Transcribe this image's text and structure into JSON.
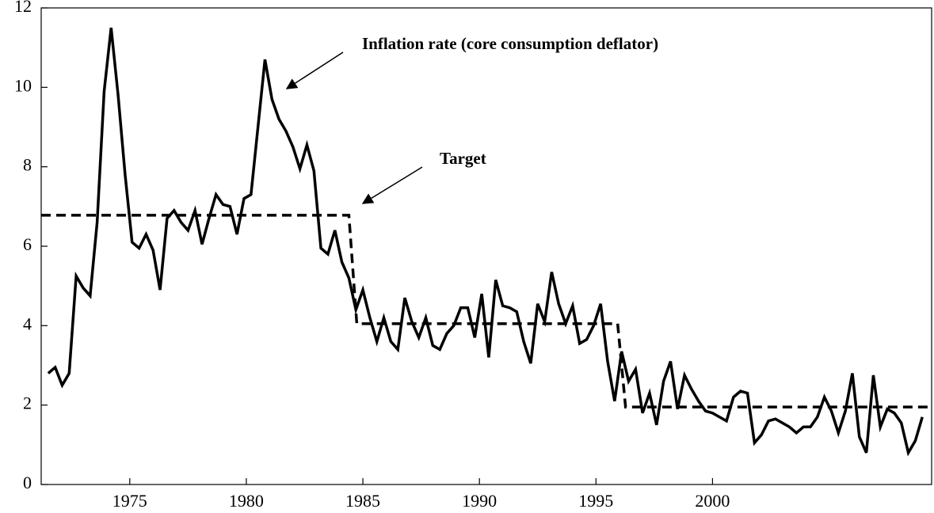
{
  "chart_data": {
    "type": "line",
    "annotations": [
      {
        "text": "Inflation rate (core consumption deflator)"
      },
      {
        "text": "Target"
      }
    ],
    "xlim": [
      1971.2,
      2009.4
    ],
    "xticks": [
      1975,
      1980,
      1985,
      1990,
      1995,
      2000
    ],
    "ylim": [
      0,
      12
    ],
    "yticks": [
      0,
      2,
      4,
      6,
      8,
      10,
      12
    ],
    "series": [
      {
        "name": "Inflation rate (core consumption deflator)",
        "color": "#000000",
        "style": "solid",
        "x": [
          1971.5,
          1971.8,
          1972.1,
          1972.4,
          1972.7,
          1973,
          1973.3,
          1973.6,
          1973.9,
          1974.2,
          1974.5,
          1974.8,
          1975.1,
          1975.4,
          1975.7,
          1976,
          1976.3,
          1976.6,
          1976.9,
          1977.2,
          1977.5,
          1977.8,
          1978.1,
          1978.4,
          1978.7,
          1979,
          1979.3,
          1979.6,
          1979.9,
          1980.2,
          1980.5,
          1980.8,
          1981.1,
          1981.4,
          1981.7,
          1982,
          1982.3,
          1982.6,
          1982.9,
          1983.2,
          1983.5,
          1983.8,
          1984.1,
          1984.4,
          1984.7,
          1985,
          1985.3,
          1985.6,
          1985.9,
          1986.2,
          1986.5,
          1986.8,
          1987.1,
          1987.4,
          1987.7,
          1988,
          1988.3,
          1988.6,
          1988.9,
          1989.2,
          1989.5,
          1989.8,
          1990.1,
          1990.4,
          1990.7,
          1991,
          1991.3,
          1991.6,
          1991.9,
          1992.2,
          1992.5,
          1992.8,
          1993.1,
          1993.4,
          1993.7,
          1994,
          1994.3,
          1994.6,
          1994.9,
          1995.2,
          1995.5,
          1995.8,
          1996.1,
          1996.4,
          1996.7,
          1997,
          1997.3,
          1997.6,
          1997.9,
          1998.2,
          1998.5,
          1998.8,
          1999.1,
          1999.4,
          1999.7,
          2000,
          2000.3,
          2000.6,
          2000.9,
          2001.2,
          2001.5,
          2001.8,
          2002.1,
          2002.4,
          2002.7,
          2003,
          2003.3,
          2003.6,
          2003.9,
          2004.2,
          2004.5,
          2004.8,
          2005.1,
          2005.4,
          2005.7,
          2006,
          2006.3,
          2006.6,
          2006.9,
          2007.2,
          2007.5,
          2007.8,
          2008.1,
          2008.4,
          2008.7,
          2009
        ],
        "values": [
          2.8,
          2.95,
          2.5,
          2.8,
          5.25,
          4.95,
          4.75,
          6.6,
          9.9,
          11.5,
          9.8,
          7.8,
          6.1,
          5.95,
          6.3,
          5.9,
          4.9,
          6.7,
          6.9,
          6.6,
          6.4,
          6.9,
          6.05,
          6.7,
          7.3,
          7.05,
          7.0,
          6.3,
          7.2,
          7.3,
          9.0,
          10.7,
          9.7,
          9.2,
          8.9,
          8.5,
          7.95,
          8.55,
          7.9,
          5.95,
          5.8,
          6.4,
          5.6,
          5.2,
          4.4,
          4.9,
          4.2,
          3.6,
          4.2,
          3.6,
          3.4,
          4.7,
          4.1,
          3.7,
          4.2,
          3.5,
          3.4,
          3.8,
          4.0,
          4.45,
          4.45,
          3.7,
          4.8,
          3.2,
          5.15,
          4.5,
          4.45,
          4.35,
          3.6,
          3.05,
          4.55,
          4.1,
          5.35,
          4.55,
          4.05,
          4.5,
          3.55,
          3.65,
          4.0,
          4.55,
          3.1,
          2.1,
          3.35,
          2.6,
          2.9,
          1.8,
          2.3,
          1.5,
          2.6,
          3.1,
          1.9,
          2.75,
          2.4,
          2.1,
          1.85,
          1.8,
          1.7,
          1.6,
          2.2,
          2.35,
          2.3,
          1.05,
          1.25,
          1.6,
          1.65,
          1.55,
          1.45,
          1.3,
          1.45,
          1.45,
          1.7,
          2.2,
          1.85,
          1.3,
          1.85,
          2.8,
          1.2,
          0.8,
          2.75,
          1.45,
          1.9,
          1.8,
          1.55,
          0.8,
          1.1,
          1.7
        ]
      },
      {
        "name": "Target",
        "color": "#000000",
        "style": "dashed",
        "x": [
          1971.2,
          1984.4,
          1984.74,
          1995.93,
          1996.27,
          2009.4
        ],
        "values": [
          6.78,
          6.78,
          4.05,
          4.05,
          1.95,
          1.95
        ]
      }
    ]
  }
}
